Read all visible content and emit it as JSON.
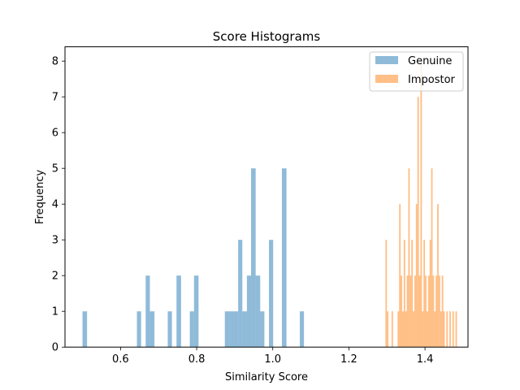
{
  "chart_data": {
    "type": "histogram",
    "title": "Score Histograms",
    "xlabel": "Similarity Score",
    "ylabel": "Frequency",
    "xlim": [
      0.454,
      1.513
    ],
    "ylim": [
      0,
      8.4
    ],
    "x_ticks": [
      0.6,
      0.8,
      1.0,
      1.2,
      1.4
    ],
    "x_tick_labels": [
      "0.6",
      "0.8",
      "1.0",
      "1.2",
      "1.4"
    ],
    "y_ticks": [
      0,
      1,
      2,
      3,
      4,
      5,
      6,
      7,
      8
    ],
    "y_tick_labels": [
      "0",
      "1",
      "2",
      "3",
      "4",
      "5",
      "6",
      "7",
      "8"
    ],
    "grid": false,
    "legend_position": "top-right",
    "series": [
      {
        "name": "Genuine",
        "color": "#1f77b4",
        "alpha": 0.5,
        "bins": [
          {
            "x0": 0.5,
            "x1": 0.512,
            "count": 1
          },
          {
            "x0": 0.643,
            "x1": 0.654,
            "count": 1
          },
          {
            "x0": 0.666,
            "x1": 0.677,
            "count": 2
          },
          {
            "x0": 0.677,
            "x1": 0.689,
            "count": 1
          },
          {
            "x0": 0.724,
            "x1": 0.735,
            "count": 1
          },
          {
            "x0": 0.747,
            "x1": 0.759,
            "count": 2
          },
          {
            "x0": 0.782,
            "x1": 0.793,
            "count": 1
          },
          {
            "x0": 0.793,
            "x1": 0.805,
            "count": 2
          },
          {
            "x0": 0.874,
            "x1": 0.886,
            "count": 1
          },
          {
            "x0": 0.886,
            "x1": 0.897,
            "count": 1
          },
          {
            "x0": 0.897,
            "x1": 0.909,
            "count": 1
          },
          {
            "x0": 0.909,
            "x1": 0.92,
            "count": 3
          },
          {
            "x0": 0.92,
            "x1": 0.932,
            "count": 1
          },
          {
            "x0": 0.932,
            "x1": 0.943,
            "count": 2
          },
          {
            "x0": 0.943,
            "x1": 0.955,
            "count": 5
          },
          {
            "x0": 0.955,
            "x1": 0.967,
            "count": 2
          },
          {
            "x0": 0.967,
            "x1": 0.978,
            "count": 1
          },
          {
            "x0": 0.99,
            "x1": 1.001,
            "count": 3
          },
          {
            "x0": 1.024,
            "x1": 1.036,
            "count": 5
          },
          {
            "x0": 1.071,
            "x1": 1.082,
            "count": 1
          }
        ]
      },
      {
        "name": "Impostor",
        "color": "#ff7f0e",
        "alpha": 0.5,
        "bins": [
          {
            "x0": 1.296,
            "x1": 1.3,
            "count": 3
          },
          {
            "x0": 1.3,
            "x1": 1.304,
            "count": 1
          },
          {
            "x0": 1.312,
            "x1": 1.316,
            "count": 1
          },
          {
            "x0": 1.328,
            "x1": 1.332,
            "count": 1
          },
          {
            "x0": 1.332,
            "x1": 1.336,
            "count": 4
          },
          {
            "x0": 1.336,
            "x1": 1.34,
            "count": 2
          },
          {
            "x0": 1.34,
            "x1": 1.344,
            "count": 1
          },
          {
            "x0": 1.344,
            "x1": 1.348,
            "count": 3
          },
          {
            "x0": 1.348,
            "x1": 1.352,
            "count": 1
          },
          {
            "x0": 1.352,
            "x1": 1.356,
            "count": 2
          },
          {
            "x0": 1.356,
            "x1": 1.36,
            "count": 5
          },
          {
            "x0": 1.36,
            "x1": 1.364,
            "count": 2
          },
          {
            "x0": 1.364,
            "x1": 1.368,
            "count": 3
          },
          {
            "x0": 1.368,
            "x1": 1.372,
            "count": 1
          },
          {
            "x0": 1.372,
            "x1": 1.376,
            "count": 2
          },
          {
            "x0": 1.376,
            "x1": 1.38,
            "count": 4
          },
          {
            "x0": 1.38,
            "x1": 1.384,
            "count": 7
          },
          {
            "x0": 1.384,
            "x1": 1.388,
            "count": 2
          },
          {
            "x0": 1.388,
            "x1": 1.392,
            "count": 8
          },
          {
            "x0": 1.392,
            "x1": 1.396,
            "count": 1
          },
          {
            "x0": 1.396,
            "x1": 1.4,
            "count": 3
          },
          {
            "x0": 1.4,
            "x1": 1.404,
            "count": 2
          },
          {
            "x0": 1.404,
            "x1": 1.408,
            "count": 1
          },
          {
            "x0": 1.408,
            "x1": 1.412,
            "count": 2
          },
          {
            "x0": 1.412,
            "x1": 1.416,
            "count": 3
          },
          {
            "x0": 1.416,
            "x1": 1.42,
            "count": 5
          },
          {
            "x0": 1.42,
            "x1": 1.424,
            "count": 2
          },
          {
            "x0": 1.424,
            "x1": 1.428,
            "count": 1
          },
          {
            "x0": 1.428,
            "x1": 1.432,
            "count": 2
          },
          {
            "x0": 1.432,
            "x1": 1.436,
            "count": 4
          },
          {
            "x0": 1.436,
            "x1": 1.44,
            "count": 2
          },
          {
            "x0": 1.44,
            "x1": 1.444,
            "count": 1
          },
          {
            "x0": 1.444,
            "x1": 1.448,
            "count": 2
          },
          {
            "x0": 1.448,
            "x1": 1.452,
            "count": 1
          },
          {
            "x0": 1.456,
            "x1": 1.46,
            "count": 1
          },
          {
            "x0": 1.464,
            "x1": 1.468,
            "count": 1
          },
          {
            "x0": 1.472,
            "x1": 1.476,
            "count": 1
          },
          {
            "x0": 1.48,
            "x1": 1.484,
            "count": 1
          }
        ]
      }
    ]
  }
}
